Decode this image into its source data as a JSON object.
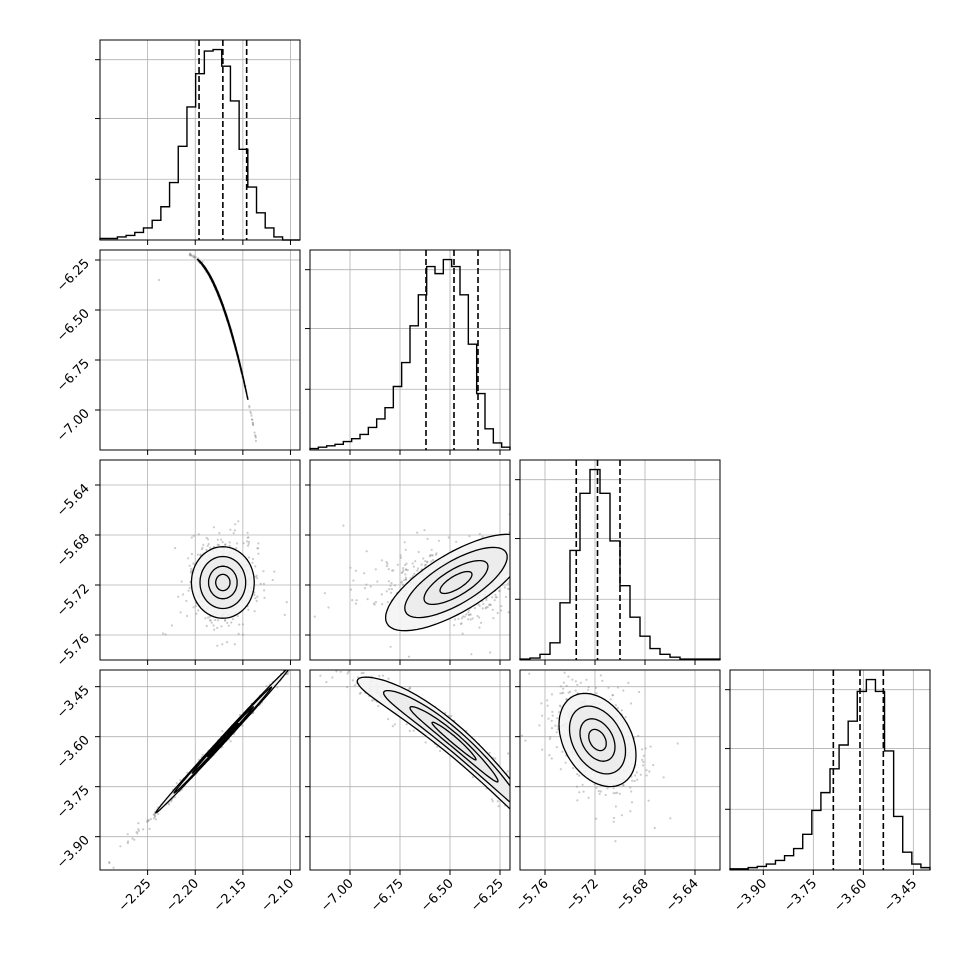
{
  "chart_data": {
    "type": "corner",
    "grid": true,
    "colors": {
      "frame": "#000000",
      "grid": "#b0b0b0",
      "hist": "#000000",
      "points": "#8c8c8c"
    },
    "params": [
      {
        "range": [
          -2.3,
          -2.09
        ],
        "ticks": [
          -2.25,
          -2.2,
          -2.15,
          -2.1
        ],
        "tick_labels": [
          "−2.25",
          "−2.20",
          "−2.15",
          "−2.10"
        ],
        "quantiles": [
          -2.196,
          -2.171,
          -2.146
        ]
      },
      {
        "range": [
          -7.2,
          -6.2
        ],
        "ticks": [
          -7.0,
          -6.75,
          -6.5,
          -6.25
        ],
        "tick_labels": [
          "−7.00",
          "−6.75",
          "−6.50",
          "−6.25"
        ],
        "quantiles": [
          -6.62,
          -6.48,
          -6.36
        ]
      },
      {
        "range": [
          -5.78,
          -5.62
        ],
        "ticks": [
          -5.76,
          -5.72,
          -5.68,
          -5.64
        ],
        "tick_labels": [
          "−5.76",
          "−5.72",
          "−5.68",
          "−5.64"
        ],
        "quantiles": [
          -5.735,
          -5.718,
          -5.7
        ]
      },
      {
        "range": [
          -4.0,
          -3.4
        ],
        "ticks": [
          -3.9,
          -3.75,
          -3.6,
          -3.45
        ],
        "tick_labels": [
          "−3.90",
          "−3.75",
          "−3.60",
          "−3.45"
        ],
        "quantiles": [
          -3.69,
          -3.61,
          -3.54
        ]
      }
    ],
    "histograms": [
      {
        "values": [
          1,
          1,
          2,
          3,
          5,
          8,
          13,
          22,
          38,
          62,
          88,
          110,
          125,
          126,
          115,
          92,
          60,
          35,
          18,
          8,
          2,
          0,
          0
        ]
      },
      {
        "values": [
          1,
          2,
          3,
          4,
          6,
          8,
          11,
          16,
          22,
          30,
          45,
          62,
          88,
          110,
          130,
          125,
          135,
          130,
          110,
          75,
          40,
          15,
          5,
          2
        ]
      },
      {
        "values": [
          1,
          2,
          6,
          18,
          60,
          115,
          175,
          200,
          175,
          125,
          78,
          45,
          25,
          12,
          6,
          3,
          1,
          1,
          1,
          1
        ]
      },
      {
        "values": [
          1,
          1,
          2,
          3,
          5,
          8,
          12,
          18,
          30,
          50,
          65,
          85,
          105,
          125,
          150,
          160,
          150,
          100,
          45,
          15,
          5,
          2
        ]
      }
    ],
    "pairs": [
      {
        "x_param": 0,
        "y_param": 1,
        "center": [
          -2.171,
          -6.48
        ],
        "axis": [
          1,
          -13.3
        ],
        "spread": [
          0.012,
          0.0025
        ],
        "curve": 170
      },
      {
        "x_param": 0,
        "y_param": 2,
        "center": [
          -2.171,
          -5.718
        ],
        "axis": [
          1,
          0
        ],
        "spread": [
          0.015,
          0.013
        ],
        "curve": 0
      },
      {
        "x_param": 1,
        "y_param": 2,
        "center": [
          -6.47,
          -5.718
        ],
        "axis": [
          1,
          0.08
        ],
        "spread": [
          0.16,
          0.012
        ],
        "curve": 0
      },
      {
        "x_param": 0,
        "y_param": 3,
        "center": [
          -2.171,
          -3.61
        ],
        "axis": [
          1,
          3.1
        ],
        "spread": [
          0.032,
          0.006
        ],
        "curve": 0
      },
      {
        "x_param": 1,
        "y_param": 3,
        "center": [
          -6.48,
          -3.61
        ],
        "axis": [
          1,
          -0.5
        ],
        "spread": [
          0.22,
          0.025
        ],
        "curve": 0.28
      },
      {
        "x_param": 2,
        "y_param": 3,
        "center": [
          -5.718,
          -3.61
        ],
        "axis": [
          1,
          -1.5
        ],
        "spread": [
          0.014,
          0.06
        ],
        "curve": 0
      }
    ]
  }
}
